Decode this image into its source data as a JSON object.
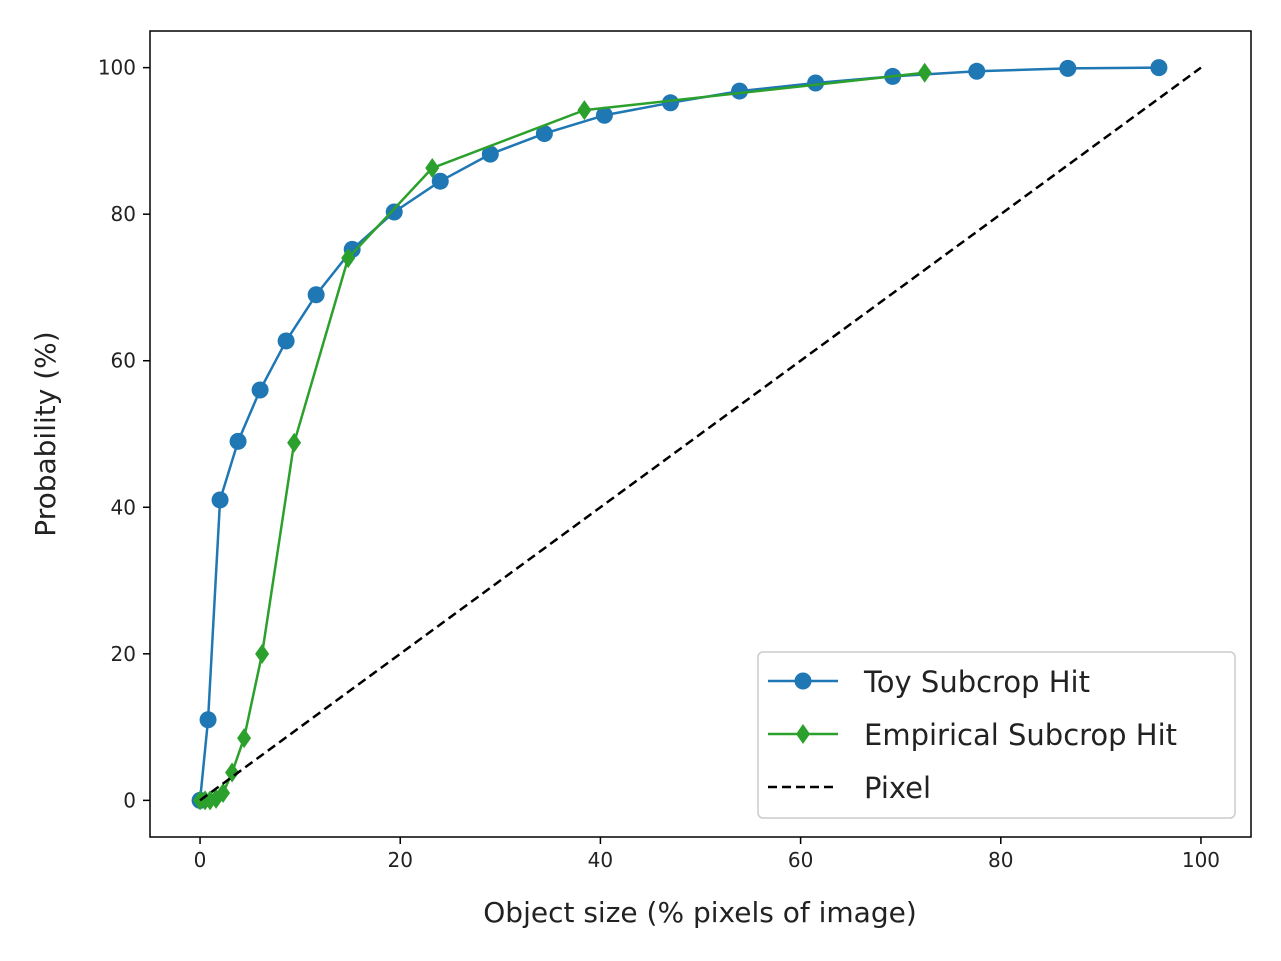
{
  "chart_data": {
    "type": "line",
    "title": "",
    "xlabel": "Object size (% pixels of image)",
    "ylabel": "Probability (%)",
    "xlim": [
      -5,
      105
    ],
    "ylim": [
      -5,
      105
    ],
    "xticks": [
      0,
      20,
      40,
      60,
      80,
      100
    ],
    "yticks": [
      0,
      20,
      40,
      60,
      80,
      100
    ],
    "grid": false,
    "legend_position": "lower-right",
    "series": [
      {
        "name": "Toy Subcrop Hit",
        "color": "#1f77b4",
        "marker": "circle",
        "linestyle": "solid",
        "points": [
          [
            0.0,
            0.0
          ],
          [
            0.8,
            11.0
          ],
          [
            2.0,
            41.0
          ],
          [
            3.8,
            49.0
          ],
          [
            6.0,
            56.0
          ],
          [
            8.6,
            62.7
          ],
          [
            11.6,
            69.0
          ],
          [
            15.2,
            75.2
          ],
          [
            19.4,
            80.3
          ],
          [
            24.0,
            84.5
          ],
          [
            29.0,
            88.2
          ],
          [
            34.4,
            91.0
          ],
          [
            40.4,
            93.5
          ],
          [
            47.0,
            95.2
          ],
          [
            53.9,
            96.8
          ],
          [
            61.5,
            97.9
          ],
          [
            69.2,
            98.8
          ],
          [
            77.6,
            99.5
          ],
          [
            86.7,
            99.9
          ],
          [
            95.8,
            100.0
          ]
        ]
      },
      {
        "name": "Empirical Subcrop Hit",
        "color": "#2ca02c",
        "marker": "diamond",
        "linestyle": "solid",
        "points": [
          [
            0.0,
            0.0
          ],
          [
            0.5,
            0.0
          ],
          [
            1.0,
            0.0
          ],
          [
            1.6,
            0.2
          ],
          [
            2.3,
            1.0
          ],
          [
            3.2,
            3.8
          ],
          [
            4.4,
            8.5
          ],
          [
            6.2,
            20.0
          ],
          [
            9.4,
            48.8
          ],
          [
            14.8,
            74.0
          ],
          [
            23.2,
            86.3
          ],
          [
            38.4,
            94.2
          ],
          [
            72.4,
            99.3
          ]
        ]
      },
      {
        "name": "Pixel",
        "color": "#000000",
        "marker": "none",
        "linestyle": "dashed",
        "points": [
          [
            0,
            0
          ],
          [
            100,
            100
          ]
        ]
      }
    ]
  }
}
